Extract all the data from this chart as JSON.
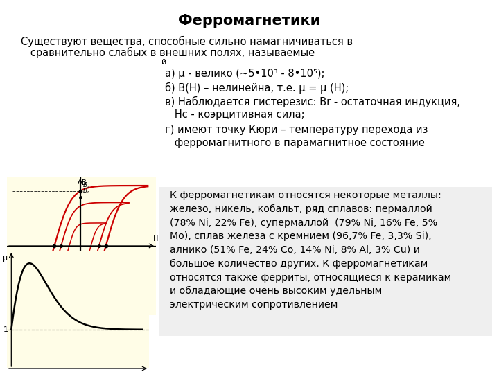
{
  "title": "Ферромагнетики",
  "title_fontsize": 15,
  "bg_color": "#ffffff",
  "hysteresis_bg": "#fffde7",
  "mu_bg": "#fffde7",
  "intro_line1": "Существуют вещества, способные сильно намагничиваться в",
  "intro_line2": "   сравнительно слабых в внешних полях, называемые",
  "prop_lines": [
    "й",
    "а) μ - велико (~5•10³ - 8•10⁵);",
    "б) B(H) – нелинейна, т.е. μ = μ (H);",
    "в) Наблюдается гистерезис: Br - остаточная индукция,",
    "   Hc - коэрцитивная сила;",
    "г) имеют точку Кюри – температуру перехода из",
    "   ферромагнитного в парамагнитное состояние"
  ],
  "metals_text": "К ферромагнетикам относятся некоторые металлы:\nжелезо, никель, кобальт, ряд сплавов: пермаллой\n(78% Ni, 22% Fe), супермаллой  (79% Ni, 16% Fe, 5%\nMo), сплав железа с кремнием (96,7% Fe, 3,3% Si),\nалнико (51% Fe, 24% Co, 14% Ni, 8% Al, 3% Cu) и\nбольшое количество других. К ферромагнетикам\nотносятся также ферриты, относящиеся к керамикам\nи обладающие очень высоким удельным\nэлектрическим сопротивлением"
}
